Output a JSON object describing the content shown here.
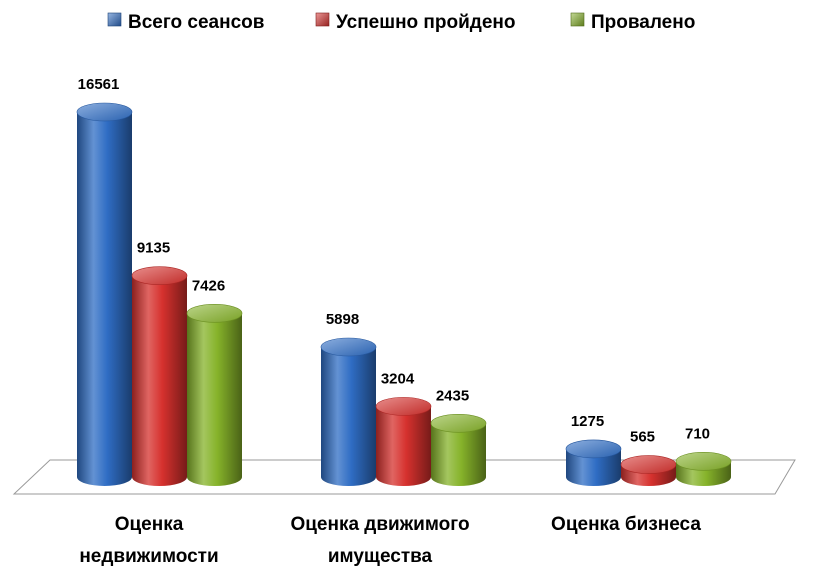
{
  "chart_data": {
    "type": "bar",
    "style": "3d-cylinder",
    "categories": [
      [
        "Оценка",
        "недвижимости"
      ],
      [
        "Оценка движимого",
        "имущества"
      ],
      [
        "Оценка бизнеса"
      ]
    ],
    "series": [
      {
        "name": "Всего сеансов",
        "color": "#2f6dc4",
        "values": [
          16561,
          5898,
          1275
        ]
      },
      {
        "name": "Успешно пройдено",
        "color": "#d6312e",
        "values": [
          9135,
          3204,
          565
        ]
      },
      {
        "name": "Провалено",
        "color": "#86b32a",
        "values": [
          7426,
          2435,
          710
        ]
      }
    ],
    "ylim": [
      0,
      16561
    ],
    "legend_position": "top",
    "grid": false
  }
}
